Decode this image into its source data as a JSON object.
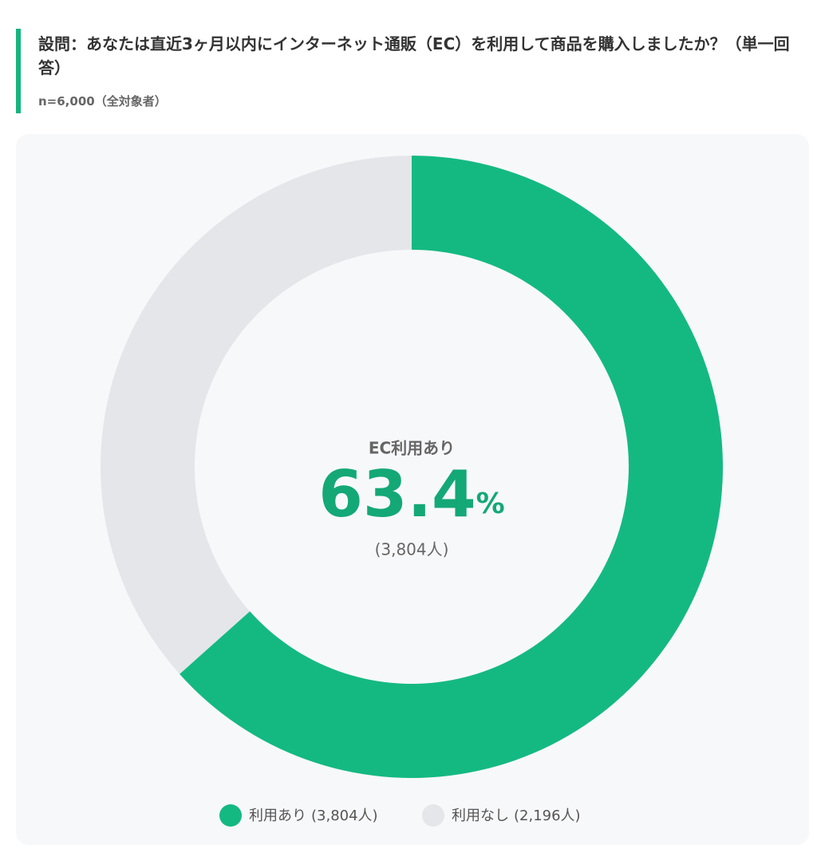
{
  "chart_data": {
    "type": "donut",
    "title": "設問：あなたは直近3ヶ月以内にインターネット通販（EC）を利用して商品を購入しましたか？（単一回答）",
    "subtitle": "n=6,000（全対象者）",
    "categories": [
      "利用あり",
      "利用なし"
    ],
    "values": [
      3804,
      2196
    ],
    "value_labels": [
      "(3,804人)",
      "(2,196人)"
    ],
    "colors": [
      "#14b981",
      "#e4e6ea"
    ],
    "center_label": "EC利用あり",
    "center_percent": 63.4,
    "center_unit": "%"
  }
}
